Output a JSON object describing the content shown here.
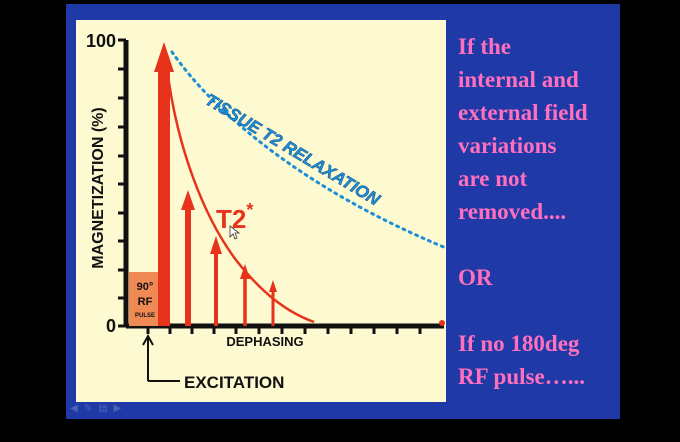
{
  "diagram": {
    "y_axis_label": "MAGNETIZATION (%)",
    "y_tick_top": "100",
    "y_tick_bottom": "0",
    "pulse_box": {
      "line1": "90°",
      "line2": "RF",
      "line3": "PULSE"
    },
    "curve_tissue_label": "TISSUE T2 RELAXATION",
    "curve_t2star_label": "T2",
    "curve_t2star_sup": "*",
    "dephasing_label": "DEPHASING",
    "excitation_label": "EXCITATION"
  },
  "side_text": {
    "line1": "If the",
    "line2": "internal and",
    "line3": "external field",
    "line4": "variations",
    "line5": "are not",
    "line6": "removed....",
    "line7": "OR",
    "line8": "If no 180deg",
    "line9": "RF pulse…..."
  },
  "colors": {
    "slide_background": "#1f3aa6",
    "panel_background": "#fdf9d1",
    "arrow_red": "#e8331c",
    "tissue_blue": "#1e8fd6",
    "side_text_pink": "#ff6fbd",
    "pulse_box_orange": "#f08a55"
  },
  "nav_icons": [
    "arrow-left-icon",
    "pencil-icon",
    "menu-icon",
    "arrow-right-icon"
  ]
}
